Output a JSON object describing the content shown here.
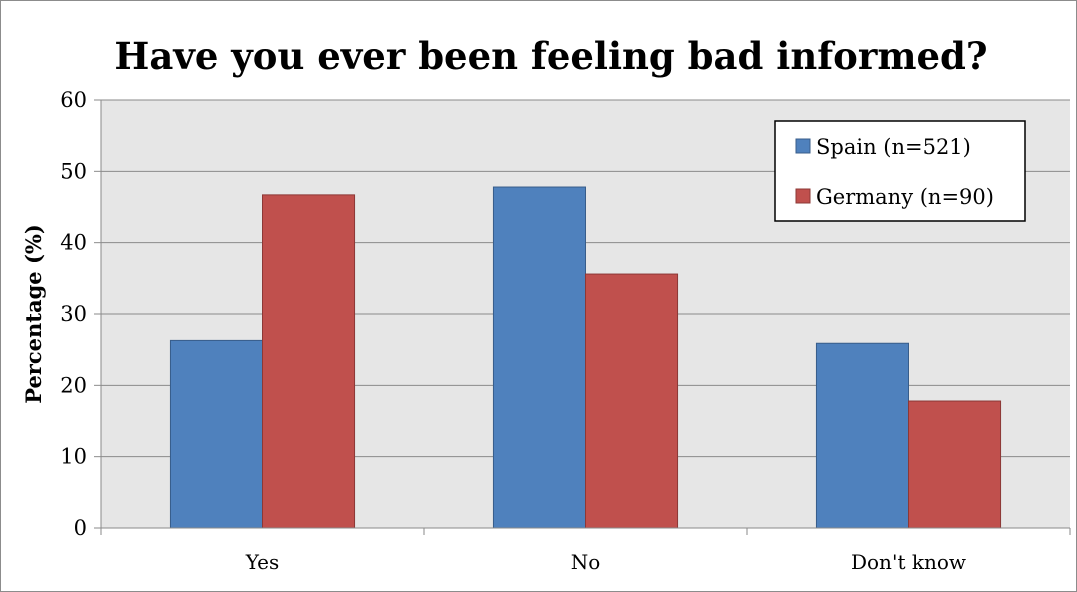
{
  "chart_data": {
    "type": "bar",
    "title": "Have you ever been feeling  bad informed?",
    "xlabel": "",
    "ylabel": "Percentage (%)",
    "categories": [
      "Yes",
      "No",
      "Don't know"
    ],
    "series": [
      {
        "name": "Spain (n=521)",
        "color": "#4f81bd",
        "values": [
          26.3,
          47.8,
          25.9
        ]
      },
      {
        "name": "Germany (n=90)",
        "color": "#c0504d",
        "values": [
          46.7,
          35.6,
          17.8
        ]
      }
    ],
    "ylim": [
      0,
      60
    ],
    "yticks": [
      0,
      10,
      20,
      30,
      40,
      50,
      60
    ],
    "grid": true,
    "legend_position": "top-right",
    "plot_background": "#e6e6e6"
  }
}
